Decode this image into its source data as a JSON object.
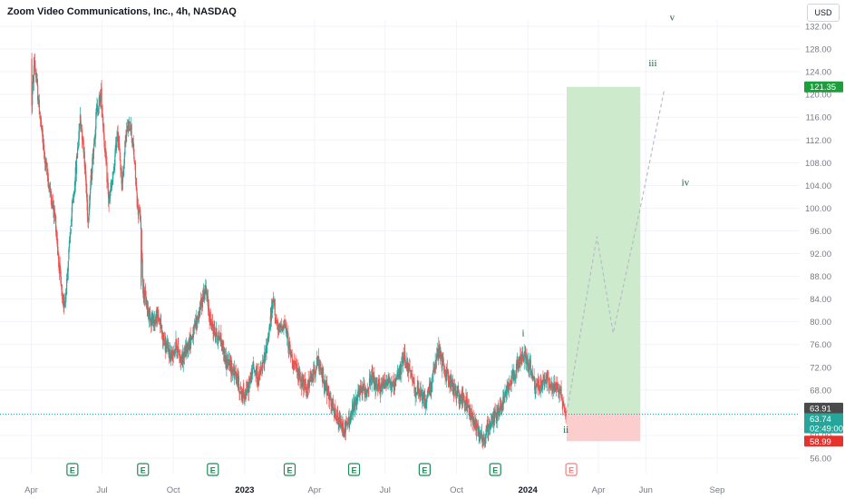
{
  "header": {
    "title": "Zoom Video Communications, Inc., 4h, NASDAQ",
    "currency": "USD"
  },
  "chart_data": {
    "type": "candlestick",
    "symbol": "Zoom Video Communications, Inc.",
    "timeframe": "4h",
    "exchange": "NASDAQ",
    "currency": "USD",
    "ylim": [
      56,
      132
    ],
    "ytick_labels": [
      "56.00",
      "60.00",
      "64.00",
      "68.00",
      "72.00",
      "76.00",
      "80.00",
      "84.00",
      "88.00",
      "92.00",
      "96.00",
      "100.00",
      "104.00",
      "108.00",
      "112.00",
      "116.00",
      "120.00",
      "124.00",
      "128.00",
      "132.00"
    ],
    "xtick_labels": [
      "Apr",
      "Jul",
      "Oct",
      "2023",
      "Apr",
      "Jul",
      "Oct",
      "2024",
      "Apr",
      "Jun",
      "Sep"
    ],
    "xtick_dates": [
      "2022-04-01",
      "2022-07-01",
      "2022-10-01",
      "2023-01-01",
      "2023-04-01",
      "2023-07-01",
      "2023-10-01",
      "2024-01-01",
      "2024-04-01",
      "2024-06-01",
      "2024-09-01"
    ],
    "price_path": [
      [
        "2022-04-01",
        117
      ],
      [
        "2022-04-05",
        126
      ],
      [
        "2022-04-10",
        119
      ],
      [
        "2022-04-18",
        109
      ],
      [
        "2022-04-25",
        103
      ],
      [
        "2022-05-02",
        98
      ],
      [
        "2022-05-08",
        88
      ],
      [
        "2022-05-12",
        82
      ],
      [
        "2022-05-16",
        86
      ],
      [
        "2022-05-22",
        97
      ],
      [
        "2022-05-28",
        106
      ],
      [
        "2022-06-03",
        116
      ],
      [
        "2022-06-08",
        110
      ],
      [
        "2022-06-13",
        98
      ],
      [
        "2022-06-18",
        107
      ],
      [
        "2022-06-24",
        117
      ],
      [
        "2022-06-30",
        120
      ],
      [
        "2022-07-05",
        110
      ],
      [
        "2022-07-10",
        101
      ],
      [
        "2022-07-16",
        106
      ],
      [
        "2022-07-21",
        114
      ],
      [
        "2022-07-27",
        104
      ],
      [
        "2022-08-01",
        113
      ],
      [
        "2022-08-07",
        115
      ],
      [
        "2022-08-12",
        108
      ],
      [
        "2022-08-16",
        100
      ],
      [
        "2022-08-20",
        98
      ],
      [
        "2022-08-23",
        86
      ],
      [
        "2022-08-29",
        82
      ],
      [
        "2022-09-05",
        80
      ],
      [
        "2022-09-12",
        81
      ],
      [
        "2022-09-20",
        76
      ],
      [
        "2022-09-28",
        74
      ],
      [
        "2022-10-05",
        76
      ],
      [
        "2022-10-12",
        73
      ],
      [
        "2022-10-20",
        76
      ],
      [
        "2022-10-27",
        78
      ],
      [
        "2022-11-04",
        82
      ],
      [
        "2022-11-11",
        86
      ],
      [
        "2022-11-18",
        80
      ],
      [
        "2022-11-24",
        78
      ],
      [
        "2022-12-01",
        77
      ],
      [
        "2022-12-08",
        73
      ],
      [
        "2022-12-15",
        72
      ],
      [
        "2022-12-22",
        70
      ],
      [
        "2022-12-29",
        67
      ],
      [
        "2023-01-05",
        68
      ],
      [
        "2023-01-12",
        72
      ],
      [
        "2023-01-19",
        70
      ],
      [
        "2023-01-26",
        73
      ],
      [
        "2023-02-02",
        79
      ],
      [
        "2023-02-07",
        84
      ],
      [
        "2023-02-13",
        78
      ],
      [
        "2023-02-21",
        80
      ],
      [
        "2023-02-28",
        75
      ],
      [
        "2023-03-07",
        72
      ],
      [
        "2023-03-14",
        70
      ],
      [
        "2023-03-21",
        68
      ],
      [
        "2023-03-28",
        70
      ],
      [
        "2023-04-05",
        73
      ],
      [
        "2023-04-12",
        70
      ],
      [
        "2023-04-19",
        67
      ],
      [
        "2023-04-26",
        64
      ],
      [
        "2023-05-03",
        62
      ],
      [
        "2023-05-10",
        61
      ],
      [
        "2023-05-17",
        63
      ],
      [
        "2023-05-24",
        66
      ],
      [
        "2023-05-31",
        68
      ],
      [
        "2023-06-07",
        68
      ],
      [
        "2023-06-14",
        70
      ],
      [
        "2023-06-21",
        68
      ],
      [
        "2023-06-28",
        69
      ],
      [
        "2023-07-05",
        70
      ],
      [
        "2023-07-12",
        68
      ],
      [
        "2023-07-19",
        71
      ],
      [
        "2023-07-26",
        74
      ],
      [
        "2023-08-02",
        71
      ],
      [
        "2023-08-09",
        68
      ],
      [
        "2023-08-16",
        67
      ],
      [
        "2023-08-22",
        66
      ],
      [
        "2023-08-29",
        69
      ],
      [
        "2023-09-05",
        73
      ],
      [
        "2023-09-08",
        75
      ],
      [
        "2023-09-14",
        72
      ],
      [
        "2023-09-21",
        70
      ],
      [
        "2023-09-28",
        68
      ],
      [
        "2023-10-05",
        67
      ],
      [
        "2023-10-12",
        66
      ],
      [
        "2023-10-19",
        64
      ],
      [
        "2023-10-26",
        62
      ],
      [
        "2023-11-02",
        60
      ],
      [
        "2023-11-05",
        59
      ],
      [
        "2023-11-10",
        61
      ],
      [
        "2023-11-16",
        63
      ],
      [
        "2023-11-23",
        64
      ],
      [
        "2023-11-30",
        66
      ],
      [
        "2023-12-07",
        69
      ],
      [
        "2023-12-14",
        71
      ],
      [
        "2023-12-21",
        73
      ],
      [
        "2023-12-28",
        74
      ],
      [
        "2024-01-04",
        72
      ],
      [
        "2024-01-11",
        68
      ],
      [
        "2024-01-18",
        69
      ],
      [
        "2024-01-25",
        70
      ],
      [
        "2024-02-01",
        68
      ],
      [
        "2024-02-08",
        69
      ],
      [
        "2024-02-15",
        66
      ],
      [
        "2024-02-19",
        63.74
      ]
    ],
    "last_price": "63.74",
    "countdown": "02:49:00",
    "price_labels": {
      "target": "121.35",
      "entry": "63.91",
      "stop": "58.99"
    },
    "long_position": {
      "entry": 63.91,
      "target": 121.35,
      "stop": 58.99,
      "start": "2024-02-20",
      "end": "2024-05-25"
    },
    "projection_path": [
      [
        "2024-02-20",
        63.9
      ],
      [
        "2024-03-30",
        95
      ],
      [
        "2024-04-20",
        78
      ],
      [
        "2024-05-28",
        102
      ],
      [
        "2024-06-25",
        121
      ]
    ],
    "wave_labels": [
      {
        "text": "i",
        "date": "2023-12-26",
        "price": 77.5
      },
      {
        "text": "ii",
        "date": "2024-02-19",
        "price": 60.5
      },
      {
        "text": "iii",
        "date": "2024-06-10",
        "price": 125
      },
      {
        "text": "iv",
        "date": "2024-07-22",
        "price": 104
      },
      {
        "text": "v",
        "date": "2024-07-05",
        "price": 133
      }
    ],
    "earnings_markers": [
      {
        "label": "E",
        "date": "2022-05-24",
        "upcoming": false
      },
      {
        "label": "E",
        "date": "2022-08-23",
        "upcoming": false
      },
      {
        "label": "E",
        "date": "2022-11-21",
        "upcoming": false
      },
      {
        "label": "E",
        "date": "2023-02-28",
        "upcoming": false
      },
      {
        "label": "E",
        "date": "2023-05-22",
        "upcoming": false
      },
      {
        "label": "E",
        "date": "2023-08-21",
        "upcoming": false
      },
      {
        "label": "E",
        "date": "2023-11-20",
        "upcoming": false
      },
      {
        "label": "E",
        "date": "2024-02-26",
        "upcoming": true
      }
    ],
    "colors": {
      "up": "#26a69a",
      "down": "#ef5350",
      "target_zone": "#cdeacd",
      "stop_zone": "#fbcdcd",
      "grid": "#f0f3fa",
      "projection": "#b8bcc8",
      "current_price_line": "#26a69a"
    },
    "grid": true
  }
}
